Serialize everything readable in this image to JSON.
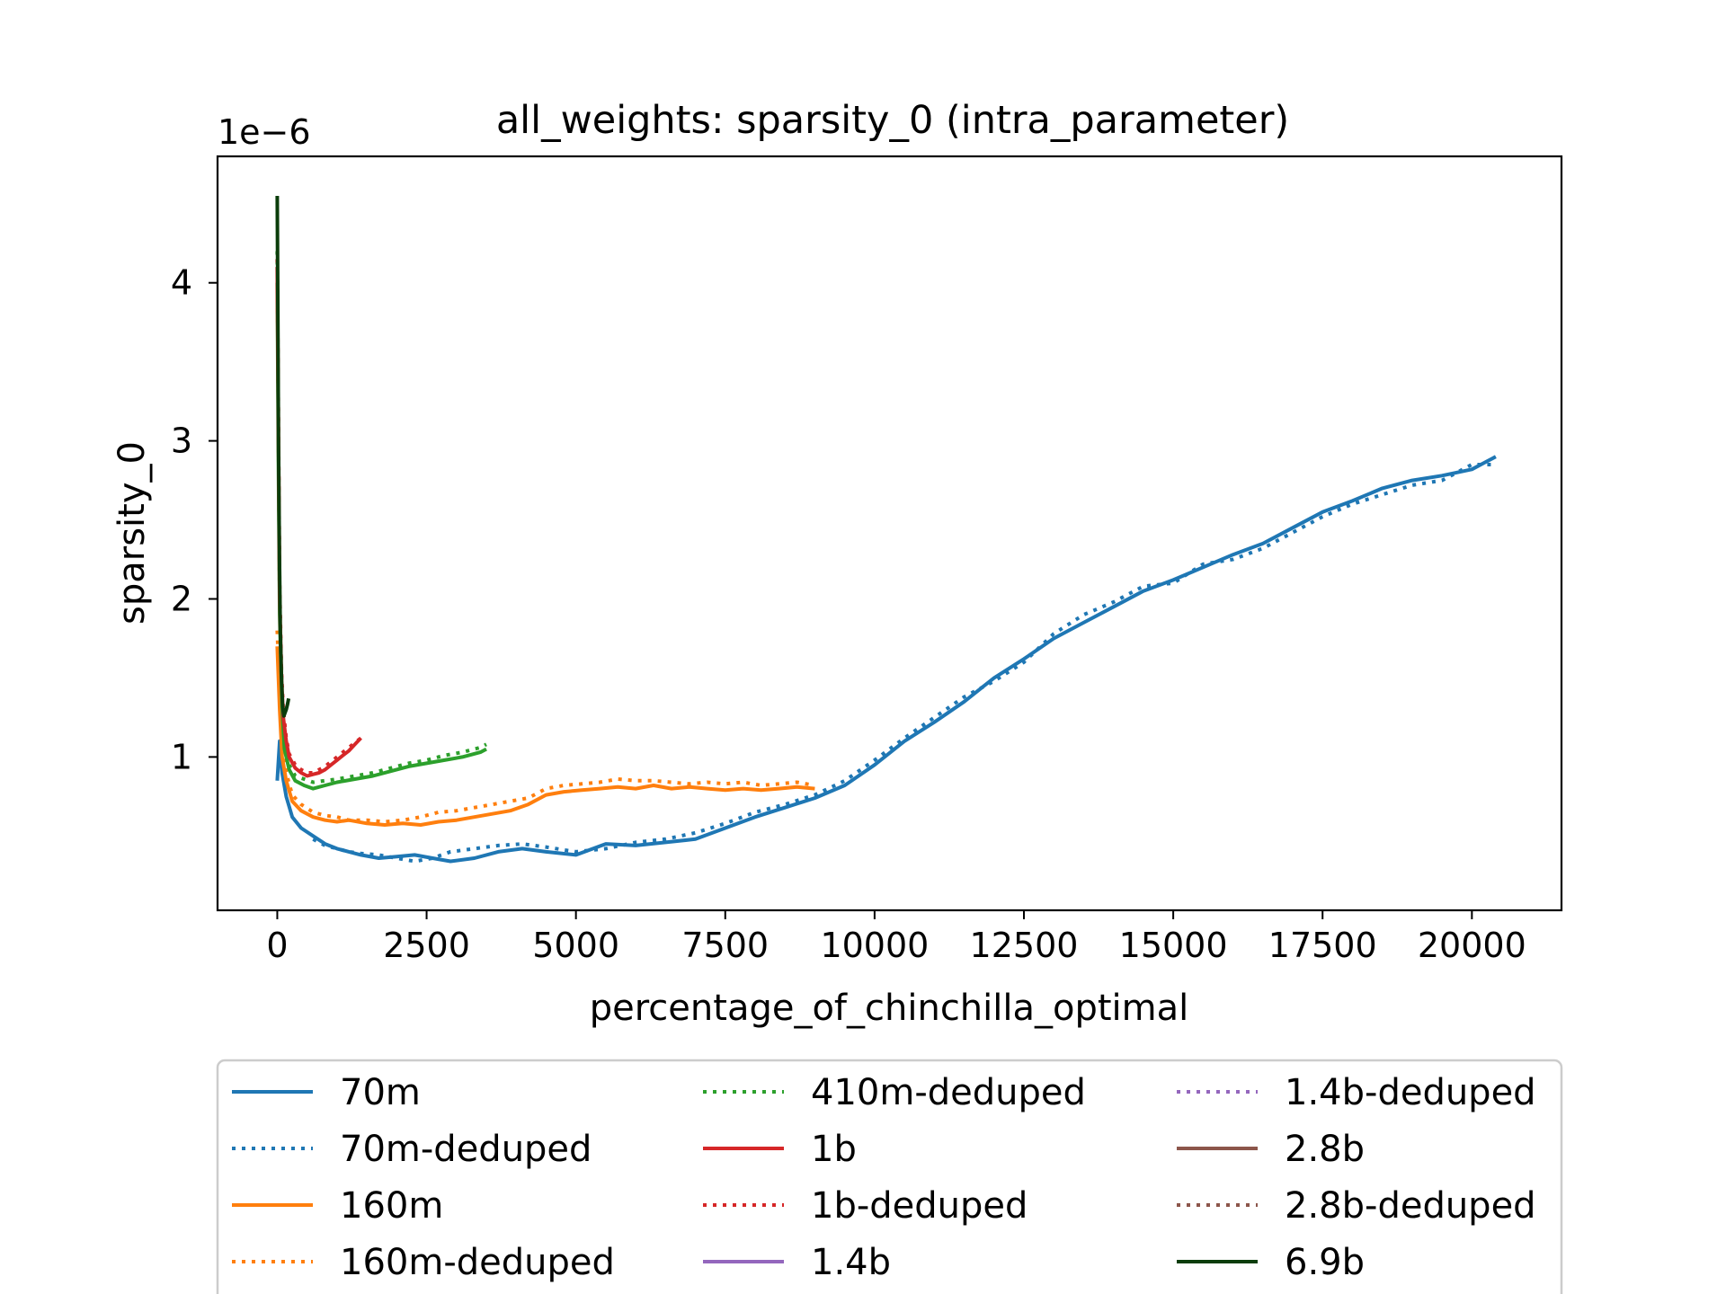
{
  "chart_data": {
    "type": "line",
    "title": "all_weights: sparsity_0 (intra_parameter)",
    "xlabel": "percentage_of_chinchilla_optimal",
    "ylabel": "sparsity_0",
    "y_offset_text": "1e−6",
    "y_scale_factor": 1e-06,
    "xlim": [
      -1000,
      21500
    ],
    "ylim": [
      0.03,
      4.8
    ],
    "x_ticks": [
      0,
      2500,
      5000,
      7500,
      10000,
      12500,
      15000,
      17500,
      20000
    ],
    "x_tick_labels": [
      "0",
      "2500",
      "5000",
      "7500",
      "10000",
      "12500",
      "15000",
      "17500",
      "20000"
    ],
    "y_ticks": [
      1,
      2,
      3,
      4
    ],
    "y_tick_labels": [
      "1",
      "2",
      "3",
      "4"
    ],
    "grid": false,
    "legend_placement": "below plot",
    "series": [
      {
        "name": "70m",
        "color": "#1f77b4",
        "style": "solid",
        "x": [
          0,
          40,
          80,
          150,
          250,
          400,
          600,
          800,
          1000,
          1200,
          1400,
          1700,
          2000,
          2300,
          2600,
          2900,
          3300,
          3700,
          4100,
          4500,
          5000,
          5500,
          6000,
          6500,
          7000,
          7500,
          8000,
          8500,
          9000,
          9500,
          10000,
          10500,
          11000,
          11500,
          12000,
          12500,
          13000,
          13500,
          14000,
          14500,
          15000,
          15500,
          16000,
          16500,
          17000,
          17500,
          18000,
          18500,
          19000,
          19500,
          20000,
          20400
        ],
        "y": [
          0.85,
          1.1,
          0.9,
          0.75,
          0.62,
          0.55,
          0.5,
          0.45,
          0.42,
          0.4,
          0.38,
          0.36,
          0.37,
          0.38,
          0.36,
          0.34,
          0.36,
          0.4,
          0.42,
          0.4,
          0.38,
          0.45,
          0.44,
          0.46,
          0.48,
          0.55,
          0.62,
          0.68,
          0.74,
          0.82,
          0.95,
          1.1,
          1.22,
          1.35,
          1.5,
          1.62,
          1.75,
          1.85,
          1.95,
          2.05,
          2.12,
          2.2,
          2.28,
          2.35,
          2.45,
          2.55,
          2.62,
          2.7,
          2.75,
          2.78,
          2.82,
          2.9
        ]
      },
      {
        "name": "70m-deduped",
        "color": "#1f77b4",
        "style": "dotted",
        "x": [
          600,
          800,
          1000,
          1200,
          1400,
          1700,
          2000,
          2300,
          2600,
          2900,
          3300,
          3700,
          4100,
          4500,
          5000,
          5500,
          6000,
          6500,
          7000,
          7500,
          8000,
          8500,
          9000,
          9500,
          10000,
          10500,
          11000,
          11500,
          12000,
          12500,
          13000,
          13500,
          14000,
          14500,
          15000,
          15500,
          16000,
          16500,
          17000,
          17500,
          18000,
          18500,
          19000,
          19500,
          20000,
          20400
        ],
        "y": [
          0.48,
          0.44,
          0.42,
          0.4,
          0.39,
          0.38,
          0.36,
          0.34,
          0.36,
          0.4,
          0.42,
          0.44,
          0.45,
          0.43,
          0.4,
          0.42,
          0.46,
          0.48,
          0.52,
          0.58,
          0.65,
          0.7,
          0.76,
          0.85,
          0.98,
          1.12,
          1.25,
          1.38,
          1.48,
          1.6,
          1.78,
          1.9,
          1.98,
          2.08,
          2.1,
          2.22,
          2.25,
          2.32,
          2.42,
          2.52,
          2.6,
          2.66,
          2.72,
          2.75,
          2.85,
          2.85
        ]
      },
      {
        "name": "160m",
        "color": "#ff7f0e",
        "style": "solid",
        "x": [
          0,
          40,
          80,
          150,
          250,
          400,
          600,
          800,
          1000,
          1200,
          1500,
          1800,
          2100,
          2400,
          2700,
          3000,
          3300,
          3600,
          3900,
          4200,
          4500,
          4800,
          5100,
          5400,
          5700,
          6000,
          6300,
          6600,
          6900,
          7200,
          7500,
          7800,
          8100,
          8400,
          8700,
          9000
        ],
        "y": [
          1.7,
          1.3,
          1.0,
          0.85,
          0.72,
          0.66,
          0.62,
          0.6,
          0.59,
          0.6,
          0.58,
          0.57,
          0.58,
          0.57,
          0.59,
          0.6,
          0.62,
          0.64,
          0.66,
          0.7,
          0.76,
          0.78,
          0.79,
          0.8,
          0.81,
          0.8,
          0.82,
          0.8,
          0.81,
          0.8,
          0.79,
          0.8,
          0.79,
          0.8,
          0.81,
          0.8
        ]
      },
      {
        "name": "160m-deduped",
        "color": "#ff7f0e",
        "style": "dotted",
        "x": [
          0,
          40,
          80,
          150,
          250,
          400,
          600,
          800,
          1000,
          1200,
          1500,
          1800,
          2100,
          2400,
          2700,
          3000,
          3300,
          3600,
          3900,
          4200,
          4500,
          4800,
          5100,
          5400,
          5700,
          6000,
          6300,
          6600,
          6900,
          7200,
          7500,
          7800,
          8100,
          8400,
          8700,
          9000
        ],
        "y": [
          1.8,
          1.4,
          1.05,
          0.9,
          0.76,
          0.7,
          0.65,
          0.63,
          0.62,
          0.6,
          0.6,
          0.59,
          0.6,
          0.62,
          0.65,
          0.66,
          0.68,
          0.7,
          0.72,
          0.74,
          0.8,
          0.82,
          0.83,
          0.84,
          0.86,
          0.85,
          0.85,
          0.84,
          0.83,
          0.84,
          0.83,
          0.84,
          0.82,
          0.83,
          0.84,
          0.82
        ]
      },
      {
        "name": "410m-deduped",
        "color": "#2ca02c",
        "style": "dotted",
        "x": [
          0,
          20,
          40,
          80,
          120,
          200,
          300,
          450,
          600,
          800,
          1000,
          1300,
          1600,
          1900,
          2200,
          2500,
          2800,
          3100,
          3400,
          3500
        ],
        "y": [
          4.2,
          3.0,
          2.0,
          1.4,
          1.1,
          0.95,
          0.88,
          0.86,
          0.84,
          0.85,
          0.86,
          0.88,
          0.9,
          0.93,
          0.96,
          0.98,
          1.01,
          1.03,
          1.06,
          1.08
        ]
      },
      {
        "name": "410m",
        "color": "#2ca02c",
        "style": "solid",
        "x": [
          0,
          20,
          40,
          80,
          120,
          200,
          300,
          450,
          600,
          800,
          1000,
          1300,
          1600,
          1900,
          2200,
          2500,
          2800,
          3100,
          3400,
          3500
        ],
        "y": [
          4.0,
          2.8,
          1.9,
          1.3,
          1.05,
          0.92,
          0.85,
          0.82,
          0.8,
          0.82,
          0.84,
          0.86,
          0.88,
          0.91,
          0.94,
          0.96,
          0.98,
          1.0,
          1.03,
          1.05
        ]
      },
      {
        "name": "1b",
        "color": "#d62728",
        "style": "solid",
        "x": [
          0,
          20,
          40,
          70,
          100,
          150,
          200,
          300,
          400,
          500,
          600,
          700,
          800,
          900,
          1000,
          1100,
          1200,
          1300,
          1400
        ],
        "y": [
          4.1,
          3.0,
          2.0,
          1.5,
          1.25,
          1.1,
          1.0,
          0.93,
          0.9,
          0.88,
          0.89,
          0.9,
          0.92,
          0.95,
          0.98,
          1.01,
          1.04,
          1.08,
          1.12
        ]
      },
      {
        "name": "1b-deduped",
        "color": "#d62728",
        "style": "dotted",
        "x": [
          0,
          20,
          40,
          70,
          100,
          150,
          200,
          300,
          400,
          500,
          600,
          700,
          800,
          900,
          1000,
          1100,
          1200,
          1300,
          1400
        ],
        "y": [
          4.15,
          3.1,
          2.1,
          1.55,
          1.3,
          1.12,
          1.02,
          0.95,
          0.92,
          0.9,
          0.9,
          0.92,
          0.94,
          0.97,
          1.0,
          1.03,
          1.06,
          1.09,
          1.12
        ]
      },
      {
        "name": "6.9b",
        "color": "#0b3d0b",
        "style": "solid",
        "x": [
          0,
          10,
          20,
          35,
          50,
          70,
          90,
          110,
          130,
          150,
          170,
          190
        ],
        "y": [
          4.55,
          3.8,
          3.0,
          2.3,
          1.8,
          1.5,
          1.32,
          1.26,
          1.28,
          1.3,
          1.33,
          1.37
        ]
      }
    ],
    "legend": [
      {
        "name": "70m",
        "color": "#1f77b4",
        "style": "solid"
      },
      {
        "name": "70m-deduped",
        "color": "#1f77b4",
        "style": "dotted"
      },
      {
        "name": "160m",
        "color": "#ff7f0e",
        "style": "solid"
      },
      {
        "name": "160m-deduped",
        "color": "#ff7f0e",
        "style": "dotted"
      },
      {
        "name": "410m-deduped",
        "color": "#2ca02c",
        "style": "dotted"
      },
      {
        "name": "1b",
        "color": "#d62728",
        "style": "solid"
      },
      {
        "name": "1b-deduped",
        "color": "#d62728",
        "style": "dotted"
      },
      {
        "name": "1.4b",
        "color": "#9467bd",
        "style": "solid"
      },
      {
        "name": "1.4b-deduped",
        "color": "#9467bd",
        "style": "dotted"
      },
      {
        "name": "2.8b",
        "color": "#8c564b",
        "style": "solid"
      },
      {
        "name": "2.8b-deduped",
        "color": "#8c564b",
        "style": "dotted"
      },
      {
        "name": "6.9b",
        "color": "#0b3d0b",
        "style": "solid"
      }
    ]
  }
}
